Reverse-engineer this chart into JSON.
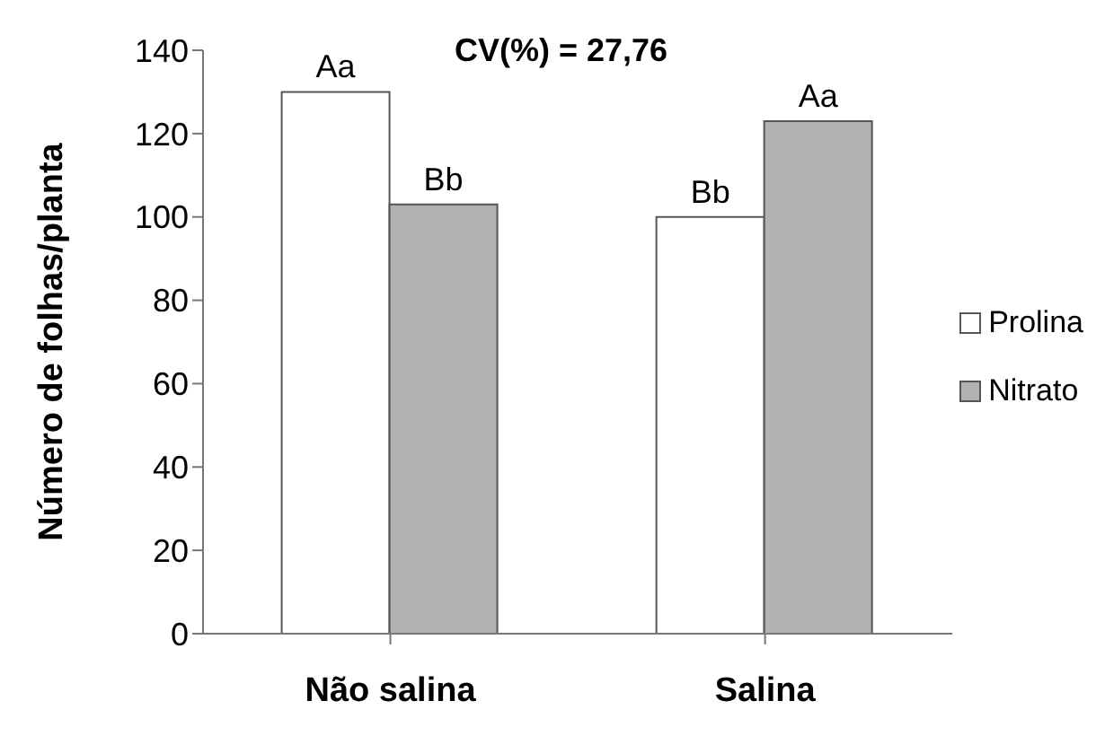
{
  "chart_data": {
    "type": "bar",
    "ylabel": "Número de folhas/planta",
    "categories": [
      "Não salina",
      "Salina"
    ],
    "series": [
      {
        "name": "Prolina",
        "color": "#ffffff",
        "values": [
          130,
          100
        ],
        "value_labels": [
          "Aa",
          "Bb"
        ]
      },
      {
        "name": "Nitrato",
        "color": "#b2b2b2",
        "values": [
          103,
          123
        ],
        "value_labels": [
          "Bb",
          "Aa"
        ]
      }
    ],
    "ylim": [
      0,
      140
    ],
    "yticks": [
      0,
      20,
      40,
      60,
      80,
      100,
      120,
      140
    ],
    "grid": false,
    "legend": "right",
    "annotations": [
      "CV(%) = 27,76"
    ]
  }
}
